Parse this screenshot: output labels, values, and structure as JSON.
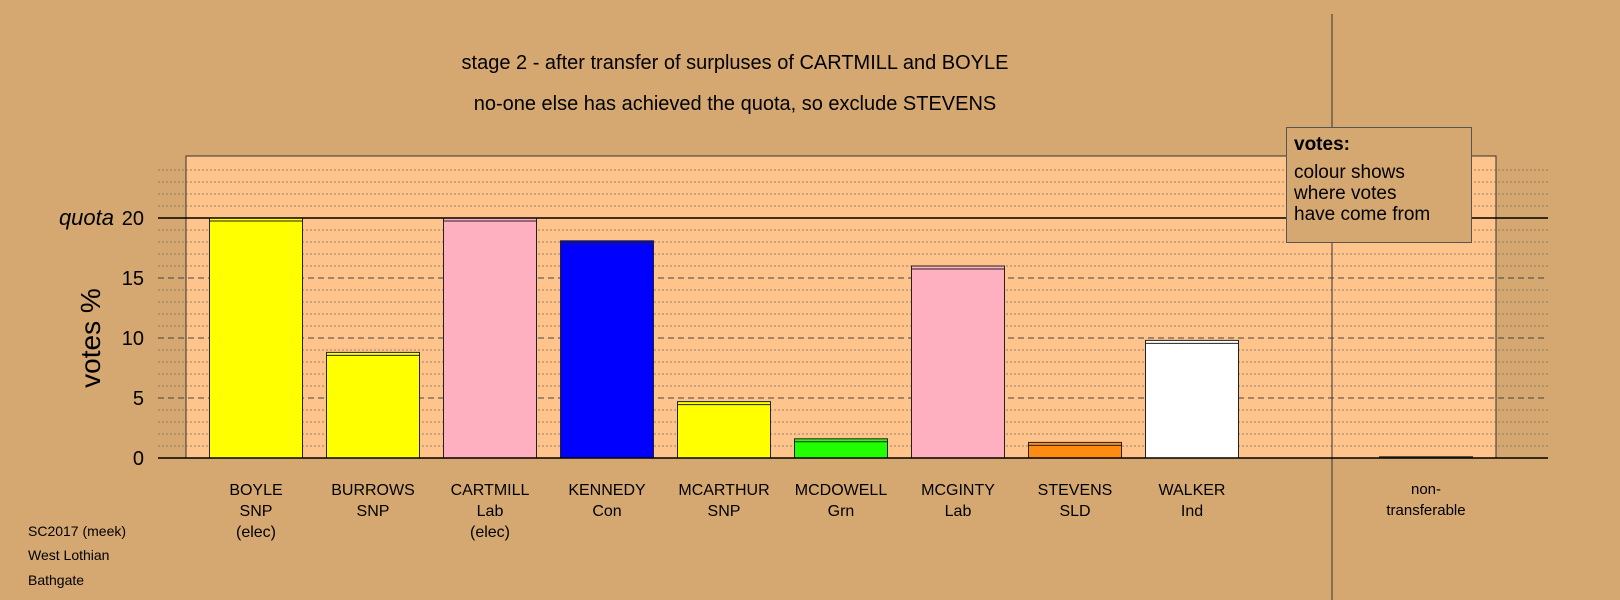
{
  "title": {
    "line1": "stage 2 - after transfer of surpluses of CARTMILL and BOYLE",
    "line2": "no-one else has achieved the quota, so exclude STEVENS"
  },
  "legend": {
    "title": "votes:",
    "lines": [
      "colour shows",
      "where votes",
      "have come from"
    ]
  },
  "footer": {
    "line1": "SC2017 (meek)",
    "line2": "West Lothian",
    "line3": "Bathgate"
  },
  "colors": {
    "background": "#d5a872",
    "plot_area": "#ffc48c",
    "SNP": "#ffff00",
    "Lab": "#ffb0c0",
    "Con": "#0000ff",
    "Grn": "#22ff00",
    "SLD": "#ff8c10",
    "Ind": "#ffffff"
  },
  "chart_data": {
    "type": "bar",
    "ylabel": "votes %",
    "quota_label": "quota",
    "quota": 20,
    "ylim": [
      0,
      25
    ],
    "yticks": [
      0,
      5,
      10,
      15,
      20
    ],
    "grid": true,
    "legend_position": "top-right",
    "categories": [
      {
        "label": [
          "BOYLE",
          "SNP",
          "(elec)"
        ],
        "value": 20.0,
        "party": "SNP"
      },
      {
        "label": [
          "BURROWS",
          "SNP"
        ],
        "value": 8.8,
        "party": "SNP"
      },
      {
        "label": [
          "CARTMILL",
          "Lab",
          "(elec)"
        ],
        "value": 20.0,
        "party": "Lab"
      },
      {
        "label": [
          "KENNEDY",
          "Con"
        ],
        "value": 18.1,
        "party": "Con"
      },
      {
        "label": [
          "MCARTHUR",
          "SNP"
        ],
        "value": 4.7,
        "party": "SNP"
      },
      {
        "label": [
          "MCDOWELL",
          "Grn"
        ],
        "value": 1.6,
        "party": "Grn"
      },
      {
        "label": [
          "MCGINTY",
          "Lab"
        ],
        "value": 16.0,
        "party": "Lab"
      },
      {
        "label": [
          "STEVENS",
          "SLD"
        ],
        "value": 1.3,
        "party": "SLD"
      },
      {
        "label": [
          "WALKER",
          "Ind"
        ],
        "value": 9.8,
        "party": "Ind"
      }
    ],
    "non_transferable": {
      "label": [
        "non-",
        "transferable"
      ],
      "value": 0.1
    }
  }
}
